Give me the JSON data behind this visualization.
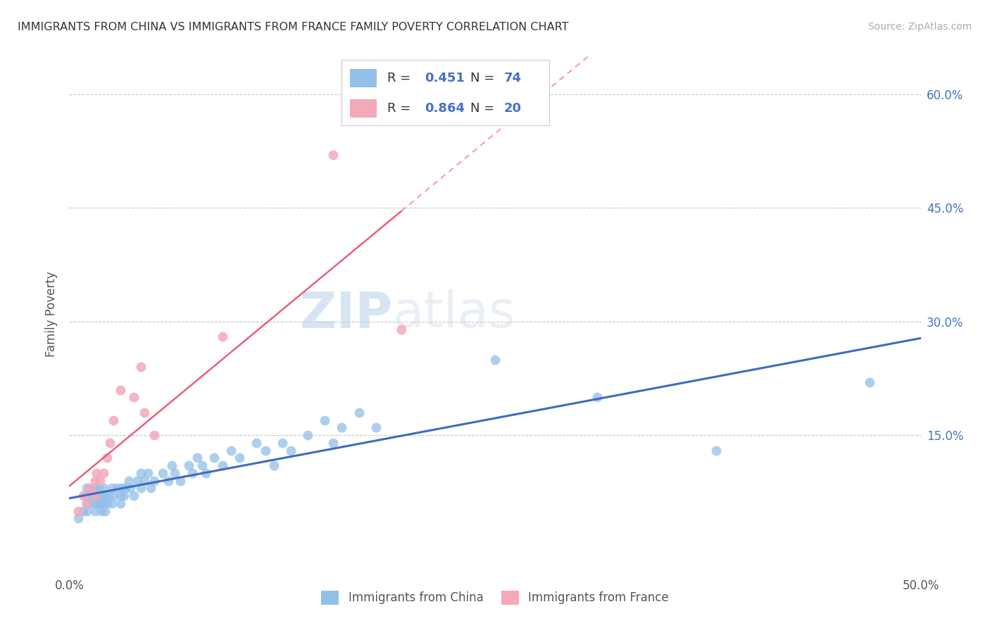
{
  "title": "IMMIGRANTS FROM CHINA VS IMMIGRANTS FROM FRANCE FAMILY POVERTY CORRELATION CHART",
  "source": "Source: ZipAtlas.com",
  "ylabel": "Family Poverty",
  "right_yticks": [
    "15.0%",
    "30.0%",
    "45.0%",
    "60.0%"
  ],
  "right_ytick_vals": [
    0.15,
    0.3,
    0.45,
    0.6
  ],
  "xlim": [
    0.0,
    0.5
  ],
  "ylim": [
    -0.03,
    0.65
  ],
  "china_color": "#92c0e8",
  "france_color": "#f4a8b8",
  "china_line_color": "#3f6bbf",
  "france_line_color": "#e8607a",
  "watermark_ZIP": "ZIP",
  "watermark_atlas": "atlas",
  "legend_R_china": "0.451",
  "legend_N_china": "74",
  "legend_R_france": "0.864",
  "legend_N_france": "20",
  "china_scatter_x": [
    0.005,
    0.008,
    0.01,
    0.01,
    0.01,
    0.01,
    0.012,
    0.013,
    0.015,
    0.015,
    0.015,
    0.015,
    0.016,
    0.016,
    0.017,
    0.018,
    0.018,
    0.019,
    0.02,
    0.02,
    0.02,
    0.02,
    0.021,
    0.021,
    0.022,
    0.023,
    0.025,
    0.025,
    0.026,
    0.028,
    0.03,
    0.03,
    0.031,
    0.032,
    0.033,
    0.035,
    0.036,
    0.038,
    0.04,
    0.042,
    0.042,
    0.044,
    0.046,
    0.048,
    0.05,
    0.055,
    0.058,
    0.06,
    0.062,
    0.065,
    0.07,
    0.072,
    0.075,
    0.078,
    0.08,
    0.085,
    0.09,
    0.095,
    0.1,
    0.11,
    0.115,
    0.12,
    0.125,
    0.13,
    0.14,
    0.15,
    0.155,
    0.16,
    0.17,
    0.18,
    0.25,
    0.31,
    0.38,
    0.47
  ],
  "china_scatter_y": [
    0.04,
    0.05,
    0.06,
    0.07,
    0.05,
    0.08,
    0.06,
    0.07,
    0.05,
    0.06,
    0.07,
    0.08,
    0.06,
    0.07,
    0.08,
    0.06,
    0.07,
    0.05,
    0.06,
    0.07,
    0.08,
    0.06,
    0.07,
    0.05,
    0.06,
    0.07,
    0.08,
    0.06,
    0.07,
    0.08,
    0.06,
    0.07,
    0.08,
    0.07,
    0.08,
    0.09,
    0.08,
    0.07,
    0.09,
    0.08,
    0.1,
    0.09,
    0.1,
    0.08,
    0.09,
    0.1,
    0.09,
    0.11,
    0.1,
    0.09,
    0.11,
    0.1,
    0.12,
    0.11,
    0.1,
    0.12,
    0.11,
    0.13,
    0.12,
    0.14,
    0.13,
    0.11,
    0.14,
    0.13,
    0.15,
    0.17,
    0.14,
    0.16,
    0.18,
    0.16,
    0.25,
    0.2,
    0.13,
    0.22
  ],
  "france_scatter_x": [
    0.005,
    0.008,
    0.01,
    0.012,
    0.015,
    0.015,
    0.016,
    0.018,
    0.02,
    0.022,
    0.024,
    0.026,
    0.03,
    0.038,
    0.042,
    0.044,
    0.05,
    0.09,
    0.155,
    0.195
  ],
  "france_scatter_y": [
    0.05,
    0.07,
    0.06,
    0.08,
    0.07,
    0.09,
    0.1,
    0.09,
    0.1,
    0.12,
    0.14,
    0.17,
    0.21,
    0.2,
    0.24,
    0.18,
    0.15,
    0.28,
    0.52,
    0.29
  ],
  "background_color": "#ffffff",
  "grid_color": "#c8c8c8"
}
